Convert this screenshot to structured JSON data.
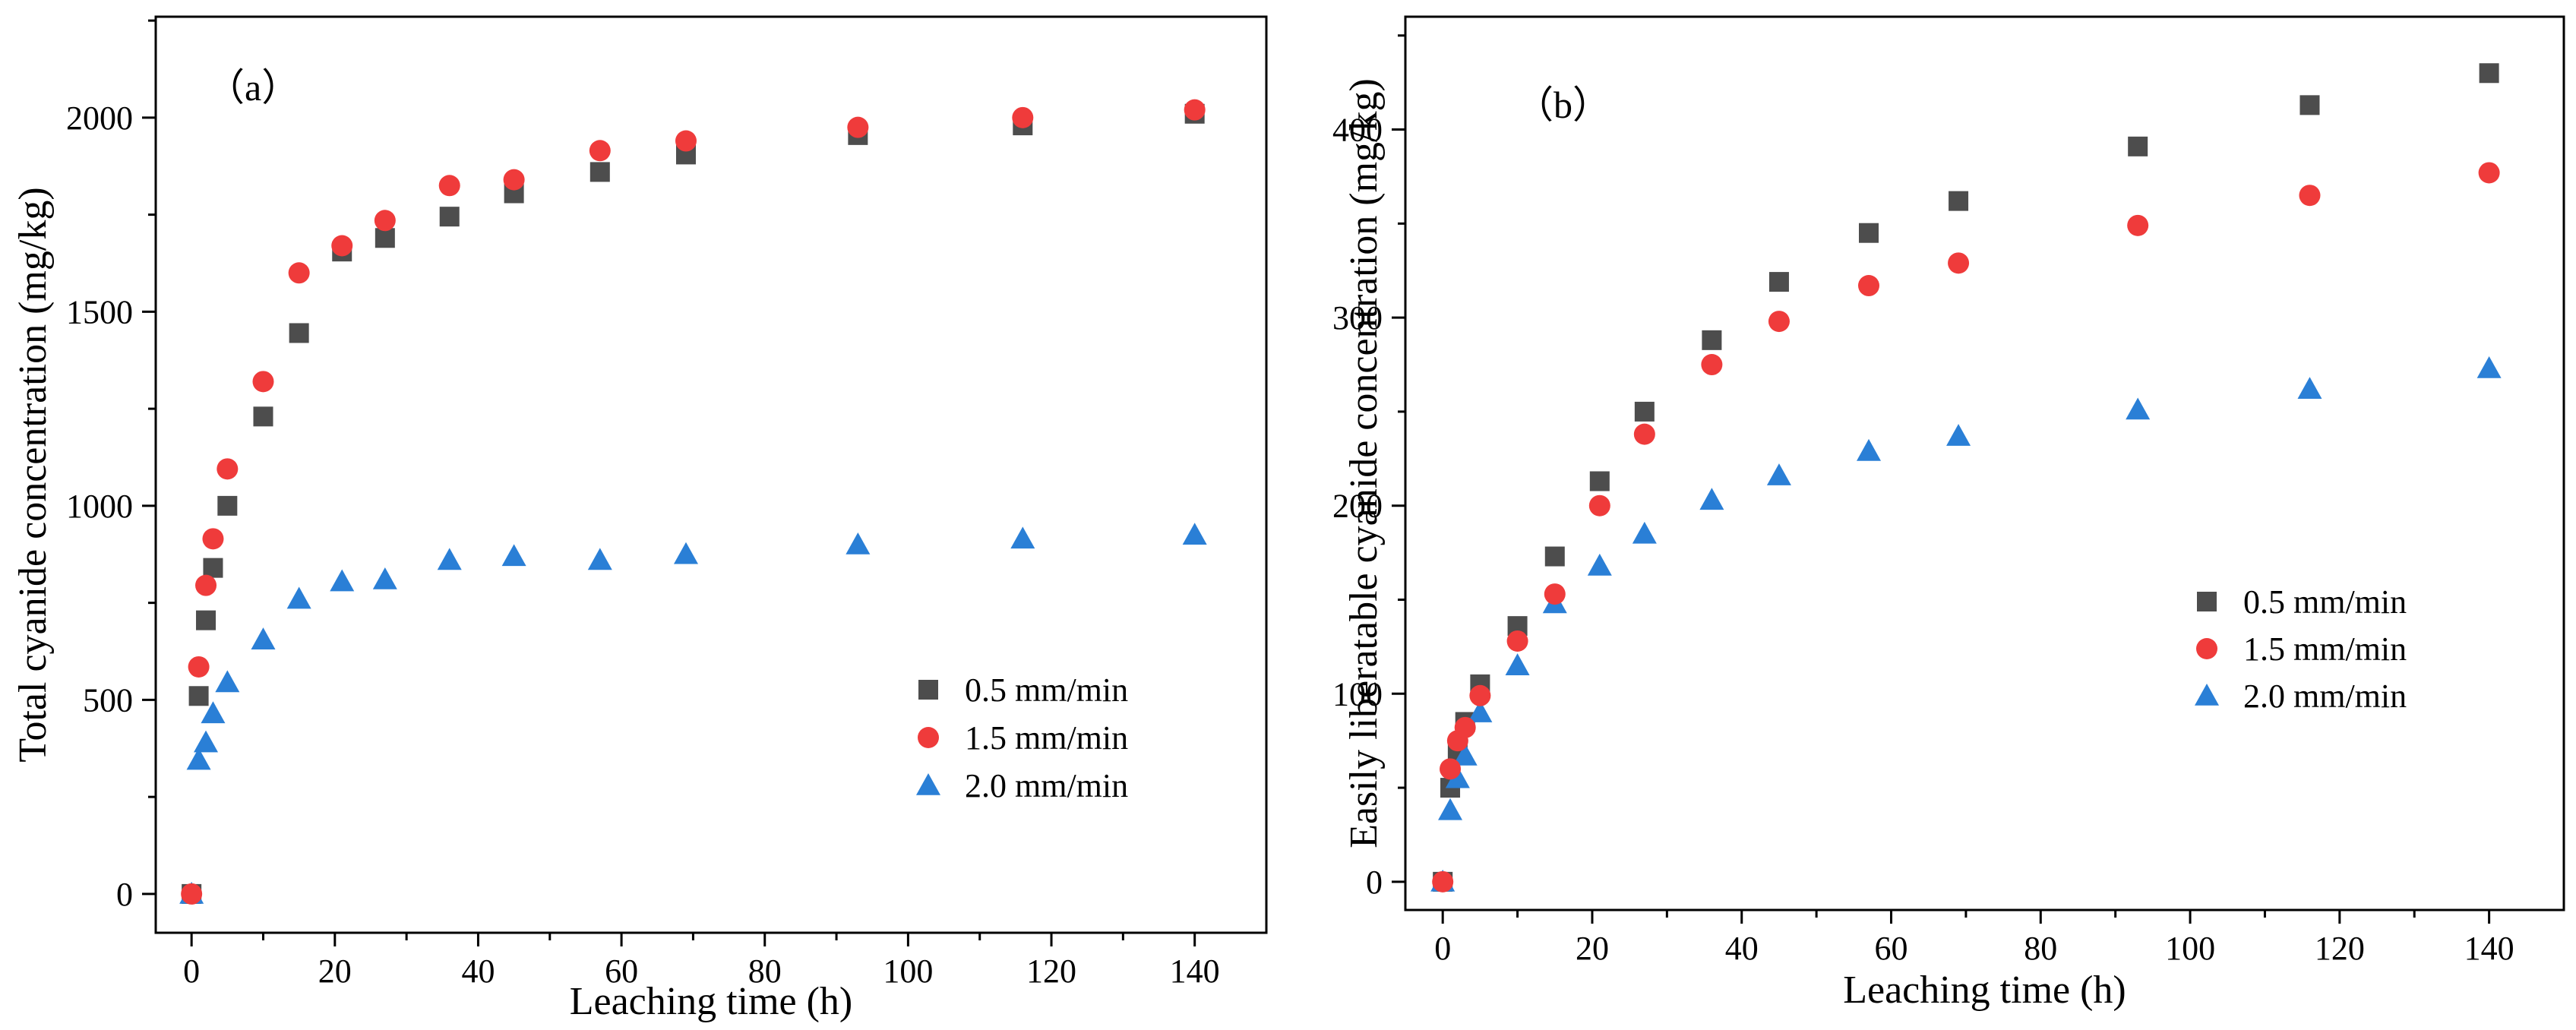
{
  "colors": {
    "series_0": "#4d4d4d",
    "series_1": "#ef3b3b",
    "series_2": "#2a7fd6"
  },
  "chart_data": [
    {
      "type": "scatter",
      "panel_label": "（a）",
      "xlabel": "Leaching time (h)",
      "ylabel": "Total cyanide concentration (mg/kg)",
      "xlim": [
        -5,
        150
      ],
      "ylim": [
        -100,
        2260
      ],
      "xticks": [
        0,
        20,
        40,
        60,
        80,
        100,
        120,
        140
      ],
      "yticks": [
        0,
        500,
        1000,
        1500,
        2000
      ],
      "legend_position": "center-right",
      "series": [
        {
          "name": "0.5 mm/min",
          "marker": "square",
          "x": [
            0,
            1,
            2,
            3,
            5,
            10,
            15,
            21,
            27,
            36,
            45,
            57,
            69,
            93,
            116,
            140
          ],
          "y": [
            0,
            510,
            705,
            840,
            1000,
            1230,
            1445,
            1655,
            1690,
            1745,
            1805,
            1860,
            1905,
            1955,
            1980,
            2010
          ]
        },
        {
          "name": "1.5 mm/min",
          "marker": "circle",
          "x": [
            0,
            1,
            2,
            3,
            5,
            10,
            15,
            21,
            27,
            36,
            45,
            57,
            69,
            93,
            116,
            140
          ],
          "y": [
            0,
            585,
            795,
            915,
            1095,
            1320,
            1600,
            1670,
            1735,
            1825,
            1840,
            1915,
            1940,
            1975,
            2000,
            2020
          ]
        },
        {
          "name": "2.0 mm/min",
          "marker": "triangle",
          "x": [
            0,
            1,
            2,
            3,
            5,
            10,
            15,
            21,
            27,
            36,
            45,
            57,
            69,
            93,
            116,
            140
          ],
          "y": [
            0,
            345,
            390,
            465,
            545,
            655,
            760,
            805,
            810,
            860,
            870,
            860,
            875,
            900,
            915,
            925
          ]
        }
      ]
    },
    {
      "type": "scatter",
      "panel_label": "（b）",
      "xlabel": "Leaching time (h)",
      "ylabel": "Easily liberatable cyanide concentration (mg/kg)",
      "xlim": [
        -5,
        150
      ],
      "ylim": [
        -15,
        460
      ],
      "xticks": [
        0,
        20,
        40,
        60,
        80,
        100,
        120,
        140
      ],
      "yticks": [
        0,
        100,
        200,
        300,
        400
      ],
      "legend_position": "center-right",
      "series": [
        {
          "name": "0.5 mm/min",
          "marker": "square",
          "x": [
            0,
            1,
            2,
            3,
            5,
            10,
            15,
            21,
            27,
            36,
            45,
            57,
            69,
            93,
            116,
            140
          ],
          "y": [
            0,
            50,
            70,
            85,
            105,
            136,
            173,
            213,
            250,
            288,
            319,
            345,
            362,
            391,
            413,
            430
          ]
        },
        {
          "name": "1.5 mm/min",
          "marker": "circle",
          "x": [
            0,
            1,
            2,
            3,
            5,
            10,
            15,
            21,
            27,
            36,
            45,
            57,
            69,
            93,
            116,
            140
          ],
          "y": [
            0,
            60,
            75,
            82,
            99,
            128,
            153,
            200,
            238,
            275,
            298,
            317,
            329,
            349,
            365,
            377
          ]
        },
        {
          "name": "2.0 mm/min",
          "marker": "triangle",
          "x": [
            0,
            1,
            2,
            3,
            5,
            10,
            15,
            21,
            27,
            36,
            45,
            57,
            69,
            93,
            116,
            140
          ],
          "y": [
            0,
            38,
            55,
            67,
            90,
            115,
            148,
            168,
            185,
            203,
            216,
            229,
            237,
            251,
            262,
            273
          ]
        }
      ]
    }
  ]
}
